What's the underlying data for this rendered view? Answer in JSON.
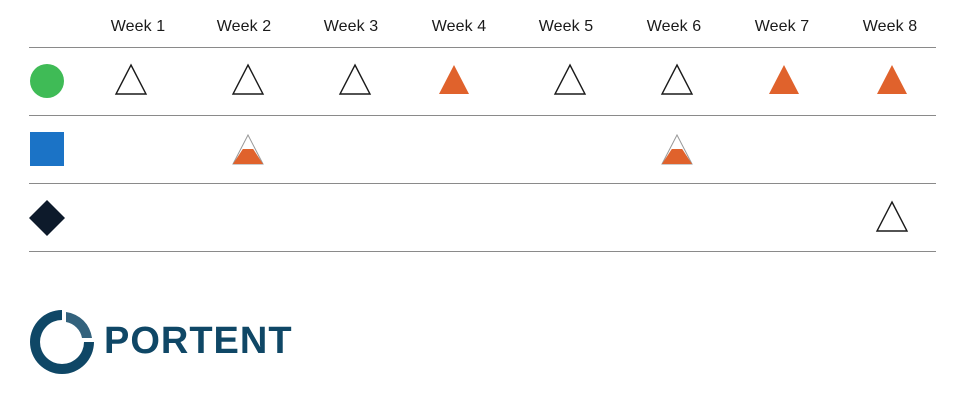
{
  "colors": {
    "accent_filled": "#e0622c",
    "outline": "#1a1a1a",
    "row1_marker": "#3fbb56",
    "row2_marker": "#1b73c6",
    "row3_marker": "#0d1a2b",
    "logo": "#0f4766",
    "divider": "#8a8a8a"
  },
  "weeks": [
    "Week 1",
    "Week 2",
    "Week 3",
    "Week 4",
    "Week 5",
    "Week 6",
    "Week 7",
    "Week 8"
  ],
  "rows": [
    {
      "marker": "green-circle-icon",
      "cells": [
        "outline",
        "outline",
        "outline",
        "filled",
        "outline",
        "outline",
        "filled",
        "filled"
      ]
    },
    {
      "marker": "blue-square-icon",
      "cells": [
        "",
        "partial",
        "",
        "",
        "",
        "partial",
        "",
        ""
      ]
    },
    {
      "marker": "black-diamond-icon",
      "cells": [
        "",
        "",
        "",
        "",
        "",
        "",
        "",
        "outline"
      ]
    }
  ],
  "logo": {
    "text": "PORTENT"
  }
}
